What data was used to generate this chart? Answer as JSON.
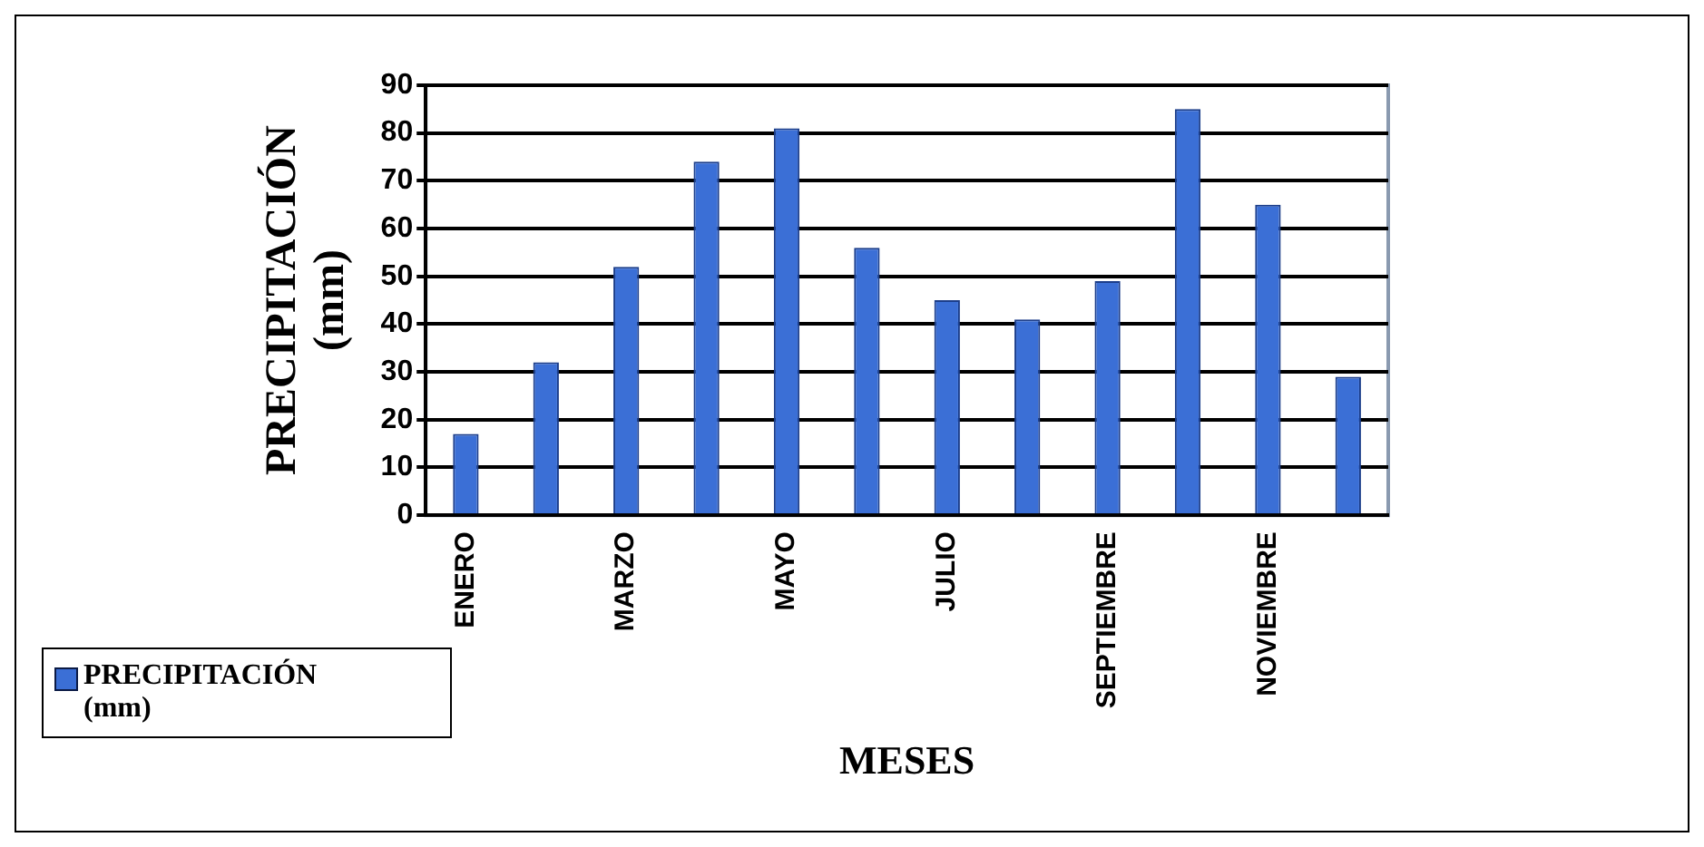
{
  "chart_data": {
    "type": "bar",
    "xlabel": "MESES",
    "ylabel": "PRECIPITACIÓN (mm)",
    "categories": [
      "ENERO",
      null,
      "MARZO",
      null,
      "MAYO",
      null,
      "JULIO",
      null,
      "SEPTIEMBRE",
      null,
      "NOVIEMBRE",
      null
    ],
    "series": [
      {
        "name": "PRECIPITACIÓN (mm)",
        "color": "#3b6fd6",
        "values": [
          17,
          32,
          52,
          74,
          81,
          56,
          45,
          41,
          49,
          85,
          65,
          29
        ]
      }
    ],
    "ylim": [
      0,
      90
    ],
    "yticks": [
      0,
      10,
      20,
      30,
      40,
      50,
      60,
      70,
      80,
      90
    ],
    "grid": "y",
    "legend": "bottom left"
  }
}
